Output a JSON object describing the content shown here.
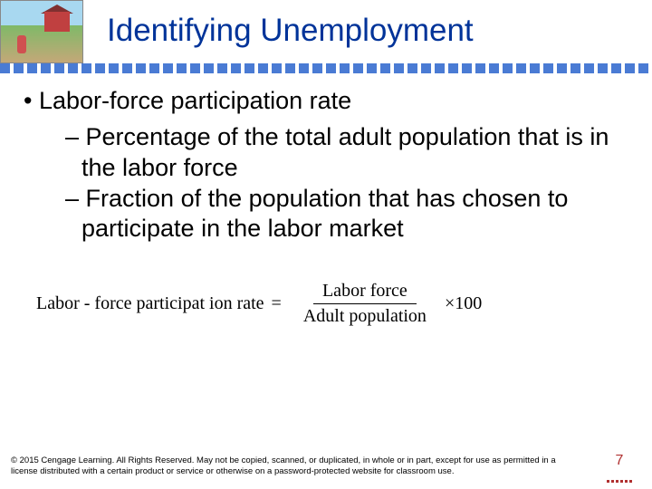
{
  "title": "Identifying Unemployment",
  "title_color": "#003399",
  "dot_color": "#4a7bd4",
  "bullets": {
    "main": "Labor-force participation rate",
    "sub1": "Percentage of the total adult population that is in the labor force",
    "sub2": "Fraction of the population that has chosen to participate in the labor market"
  },
  "formula": {
    "lhs": "Labor  - force  participat ion rate",
    "numerator": "Labor   force",
    "denominator": "Adult  population",
    "tail": "×100"
  },
  "copyright": "© 2015 Cengage Learning. All Rights Reserved. May not be copied, scanned, or duplicated, in whole or in part, except for use as permitted in a license distributed with a certain product or service or otherwise on a password-protected website for classroom use.",
  "page_number": "7",
  "page_number_color": "#b03030"
}
